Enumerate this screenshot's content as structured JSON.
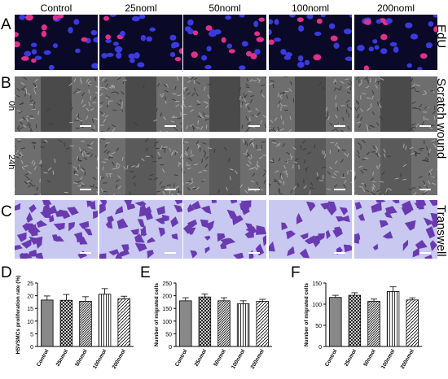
{
  "columns": [
    "Control",
    "25noml",
    "50noml",
    "100noml",
    "200noml"
  ],
  "panels": {
    "A": {
      "letter": "A",
      "label": "EdU"
    },
    "B": {
      "letter": "B",
      "label": "Scratch wound",
      "rows": [
        "0h",
        "24h"
      ]
    },
    "C": {
      "letter": "C",
      "label": "Transwell"
    },
    "D": {
      "letter": "D"
    },
    "E": {
      "letter": "E"
    },
    "F": {
      "letter": "F"
    }
  },
  "colors": {
    "edu_bg": "#0a0a28",
    "nuclei_blue": "#3a3ae0",
    "nuclei_pink": "#e0308a",
    "scratch_bg": "#6e6e6e",
    "scratch_gap": "#4a4a4a",
    "transwell_bg": "#c8c8f0",
    "transwell_cell": "#6a3ab0",
    "bar_fill": "#888888"
  },
  "chart_data": [
    {
      "type": "bar",
      "categories": [
        "Control",
        "25nmol",
        "50nmol",
        "100nmol",
        "200nmol"
      ],
      "values": [
        18.3,
        18.2,
        17.8,
        20.6,
        18.8
      ],
      "errors": [
        1.6,
        2.3,
        1.8,
        2.2,
        1.0
      ],
      "patterns": [
        "solid",
        "crosshatch",
        "dense",
        "vertical",
        "diagonal"
      ],
      "title": "",
      "xlabel": "",
      "ylabel": "HSVSMCs proliferation rate (%)",
      "ylim": [
        0,
        25
      ],
      "yticks": [
        0,
        5,
        10,
        15,
        20,
        25
      ]
    },
    {
      "type": "bar",
      "categories": [
        "Control",
        "25nmol",
        "50nmol",
        "100nmol",
        "200nmol"
      ],
      "values": [
        180,
        195,
        180,
        168,
        178
      ],
      "errors": [
        12,
        12,
        12,
        12,
        8
      ],
      "patterns": [
        "solid",
        "crosshatch",
        "dense",
        "vertical",
        "diagonal"
      ],
      "title": "",
      "xlabel": "",
      "ylabel": "Number of migrated cells",
      "ylim": [
        0,
        250
      ],
      "yticks": [
        0,
        50,
        100,
        150,
        200,
        250
      ]
    },
    {
      "type": "bar",
      "categories": [
        "Control",
        "25nmol",
        "50nmol",
        "100nmol",
        "200nmol"
      ],
      "values": [
        116,
        121,
        107,
        130,
        110
      ],
      "errors": [
        5,
        6,
        5,
        11,
        5
      ],
      "patterns": [
        "solid",
        "crosshatch",
        "dense",
        "vertical",
        "diagonal"
      ],
      "title": "",
      "xlabel": "",
      "ylabel": "Number of migrated cells",
      "ylim": [
        0,
        150
      ],
      "yticks": [
        0,
        50,
        100,
        150
      ]
    }
  ]
}
